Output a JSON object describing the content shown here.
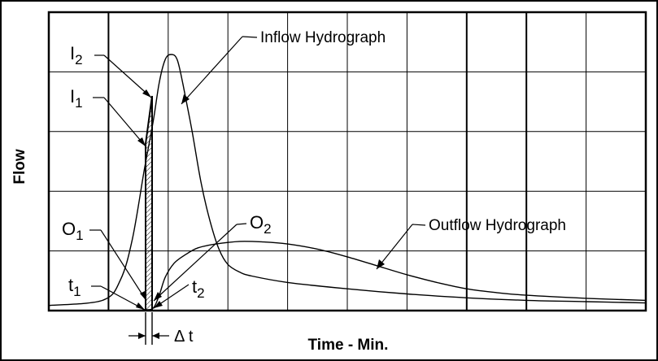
{
  "chart_data": {
    "type": "line",
    "xlabel": "Time - Min.",
    "ylabel": "Flow",
    "grid": true,
    "xlim": [
      0,
      100
    ],
    "ylim": [
      0,
      100
    ],
    "series": [
      {
        "name": "Inflow Hydrograph",
        "x": [
          0,
          9,
          12,
          14,
          16,
          17.5,
          18.5,
          19.5,
          20.5,
          21.5,
          22.5,
          24,
          25.5,
          27,
          28.5,
          30,
          32,
          34,
          40,
          50,
          60,
          70,
          80,
          90,
          100
        ],
        "y": [
          2,
          4,
          12,
          28,
          55,
          74,
          89,
          98,
          100,
          98,
          88,
          70,
          50,
          35,
          24,
          18,
          15,
          13.5,
          11,
          8.5,
          6.5,
          5,
          4,
          3.5,
          3
        ]
      },
      {
        "name": "Outflow Hydrograph",
        "x": [
          0,
          10,
          14,
          16,
          17.5,
          18.5,
          19.5,
          21,
          23,
          25,
          28,
          32,
          36,
          40,
          45,
          50,
          55,
          60,
          65,
          70,
          75,
          80,
          90,
          100
        ],
        "y": [
          0,
          0,
          0,
          0.3,
          1,
          6,
          13,
          18.5,
          22,
          24.5,
          26,
          27,
          26.8,
          26,
          24,
          21,
          17.5,
          14,
          11,
          8.5,
          7,
          6,
          4.8,
          4
        ]
      }
    ],
    "annotations": {
      "I2": "I",
      "I2_sub": "2",
      "I1": "I",
      "I1_sub": "1",
      "O1": "O",
      "O1_sub": "1",
      "O2": "O",
      "O2_sub": "2",
      "t1": "t",
      "t1_sub": "1",
      "t2": "t",
      "t2_sub": "2",
      "dt": "Δ t",
      "inflow_label": "Inflow Hydrograph",
      "outflow_label": "Outflow Hydrograph"
    }
  }
}
